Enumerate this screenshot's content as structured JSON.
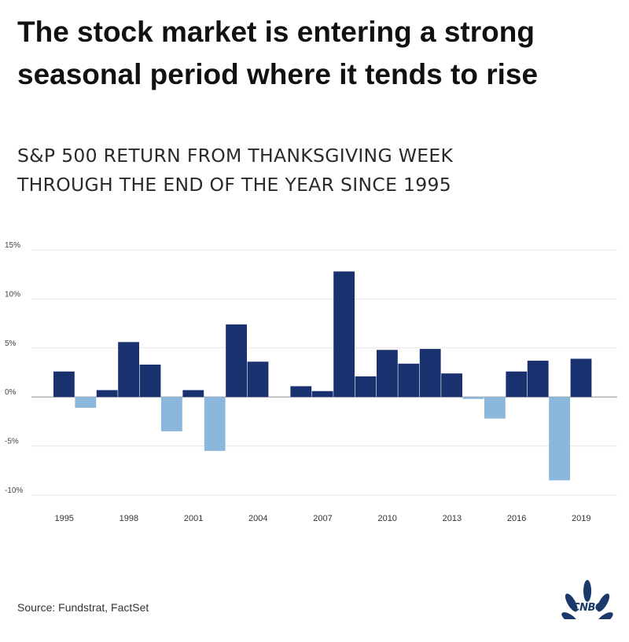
{
  "chart_data": {
    "type": "bar",
    "title": "The stock market is entering a strong seasonal period where it tends to rise",
    "subtitle_lines": [
      "S&P 500 RETURN FROM THANKSGIVING WEEK",
      "THROUGH THE END OF THE YEAR SINCE 1995"
    ],
    "xlabel": "",
    "ylabel": "",
    "ylim": [
      -10,
      15
    ],
    "y_ticks": [
      15,
      10,
      5,
      0,
      -5,
      -10
    ],
    "y_tick_labels": [
      "15%",
      "10%",
      "5%",
      "0%",
      "-5%",
      "-10%"
    ],
    "x_tick_labels": [
      "1995",
      "1998",
      "2001",
      "2004",
      "2007",
      "2010",
      "2013",
      "2016",
      "2019"
    ],
    "categories": [
      1995,
      1996,
      1997,
      1998,
      1999,
      2000,
      2001,
      2002,
      2003,
      2004,
      2005,
      2006,
      2007,
      2008,
      2009,
      2010,
      2011,
      2012,
      2013,
      2014,
      2015,
      2016,
      2017,
      2018,
      2019
    ],
    "values": [
      2.6,
      -1.1,
      0.7,
      5.6,
      3.3,
      -3.5,
      0.7,
      -5.5,
      7.4,
      3.6,
      0.0,
      1.1,
      0.6,
      12.8,
      2.1,
      4.8,
      3.4,
      4.9,
      2.4,
      -0.2,
      -2.2,
      2.6,
      3.7,
      -8.5,
      3.9
    ],
    "positive_color": "#1a3170",
    "negative_color": "#8cb7dd",
    "grid": true
  },
  "source": "Source: Fundstrat, FactSet",
  "brand": "CNBC",
  "logo_icon": "nbc-peacock-icon"
}
